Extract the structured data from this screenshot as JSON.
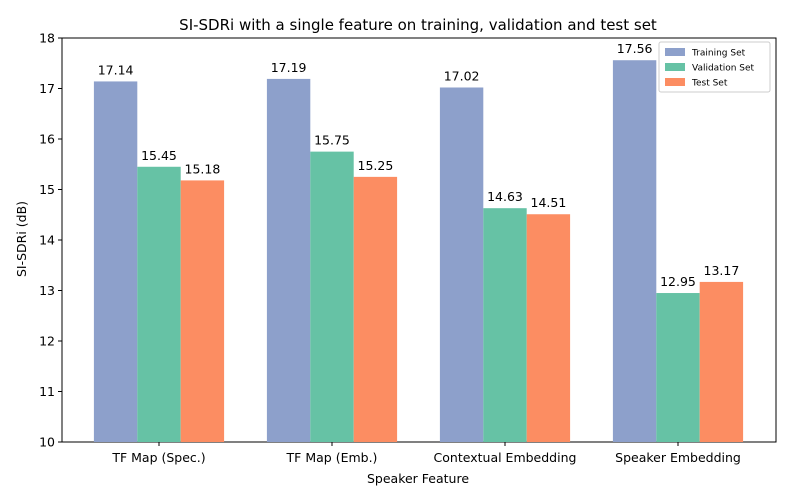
{
  "chart_data": {
    "type": "bar",
    "title": "SI-SDRi with a single feature on training, validation and test set",
    "xlabel": "Speaker Feature",
    "ylabel": "SI-SDRi (dB)",
    "ylim": [
      10,
      18
    ],
    "yticks": [
      10,
      11,
      12,
      13,
      14,
      15,
      16,
      17,
      18
    ],
    "grid": false,
    "legend_position": "top-right",
    "categories": [
      "TF Map (Spec.)",
      "TF Map (Emb.)",
      "Contextual Embedding",
      "Speaker Embedding"
    ],
    "series": [
      {
        "name": "Training Set",
        "color": "#8da0cb",
        "values": [
          17.14,
          17.19,
          17.02,
          17.56
        ],
        "labels": [
          "17.14",
          "17.19",
          "17.02",
          "17.56"
        ]
      },
      {
        "name": "Validation Set",
        "color": "#66c2a5",
        "values": [
          15.45,
          15.75,
          14.63,
          12.95
        ],
        "labels": [
          "15.45",
          "15.75",
          "14.63",
          "12.95"
        ]
      },
      {
        "name": "Test Set",
        "color": "#fc8d62",
        "values": [
          15.18,
          15.25,
          14.51,
          13.17
        ],
        "labels": [
          "15.18",
          "15.25",
          "14.51",
          "13.17"
        ]
      }
    ]
  }
}
